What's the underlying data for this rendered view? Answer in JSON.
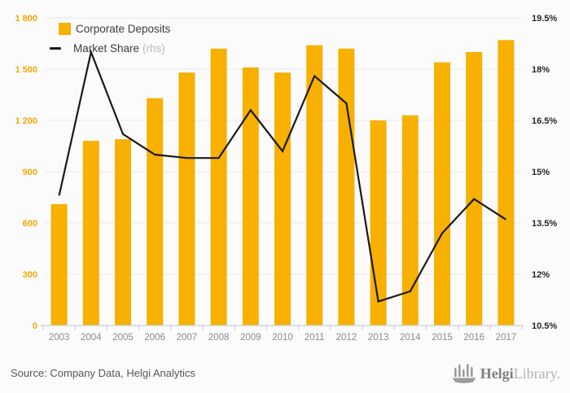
{
  "legend": {
    "bar_label": "Corporate Deposits",
    "line_label": "Market Share",
    "line_label_suffix": "(rhs)"
  },
  "footer": {
    "source": "Source: Company Data, Helgi Analytics",
    "logo_text_bold": "Helgi",
    "logo_text_light": "Library."
  },
  "colors": {
    "bar": "#F8B001",
    "line": "#1A1A1A",
    "left_axis_text": "#F2A602",
    "right_axis_text": "#262626",
    "x_axis_text": "#8C8C8C",
    "gridline": "#E9E9E9",
    "axis_line": "#C8D0E0",
    "background": "#FBFBFB",
    "logo_gray": "#9B9B9B"
  },
  "chart_data": {
    "type": "bar",
    "categories": [
      "2003",
      "2004",
      "2005",
      "2006",
      "2007",
      "2008",
      "2009",
      "2010",
      "2011",
      "2012",
      "2013",
      "2014",
      "2015",
      "2016",
      "2017"
    ],
    "series": [
      {
        "name": "Corporate Deposits",
        "type": "bar",
        "axis": "left",
        "values": [
          710,
          1080,
          1090,
          1330,
          1480,
          1620,
          1510,
          1480,
          1640,
          1620,
          1200,
          1230,
          1540,
          1600,
          1670
        ]
      },
      {
        "name": "Market Share (rhs)",
        "type": "line",
        "axis": "right",
        "values": [
          14.3,
          18.5,
          16.1,
          15.5,
          15.4,
          15.4,
          16.8,
          15.6,
          17.8,
          17.0,
          11.2,
          11.5,
          13.2,
          14.2,
          13.6
        ]
      }
    ],
    "left_axis": {
      "min": 0,
      "max": 1800,
      "tick_values": [
        1800,
        1500,
        1200,
        900,
        600,
        300,
        0
      ],
      "tick_labels": [
        "1 800",
        "1 500",
        "1 200",
        "900",
        "600",
        "300",
        "0"
      ]
    },
    "right_axis": {
      "min": 10.5,
      "max": 19.5,
      "tick_values": [
        19.5,
        18,
        16.5,
        15,
        13.5,
        12,
        10.5
      ],
      "tick_labels": [
        "19.5%",
        "18%",
        "16.5%",
        "15%",
        "13.5%",
        "12%",
        "10.5%"
      ]
    },
    "grid": true,
    "legend_position": "top-left"
  }
}
